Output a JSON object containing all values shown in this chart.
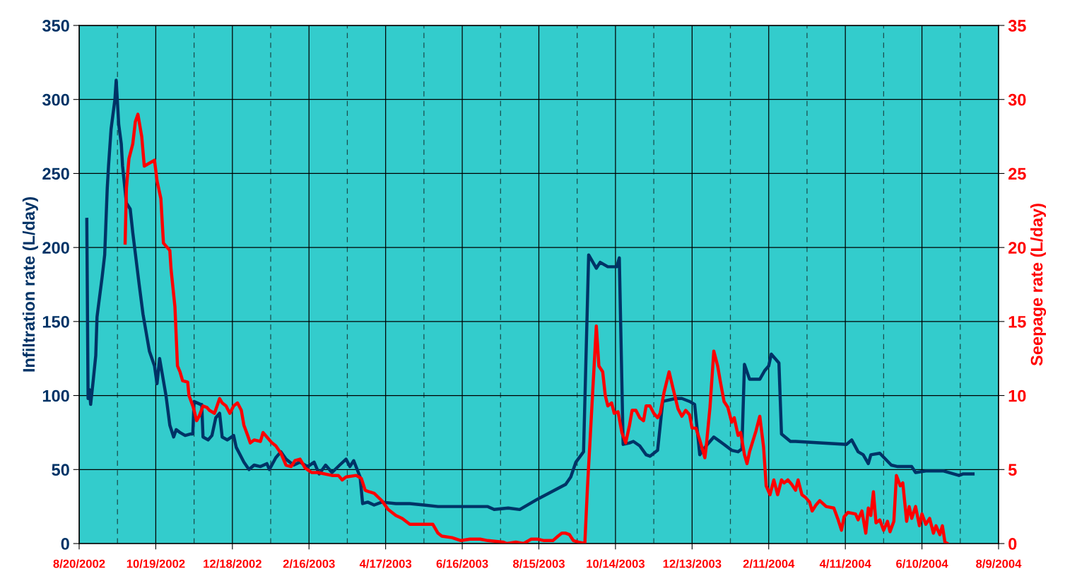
{
  "chart_data": {
    "type": "line",
    "ylabel": "Infiltration rate (L/day)",
    "y2label": "Seepage rate (L/day)",
    "xlim": [
      "2002-08-20",
      "2004-08-09"
    ],
    "xticks": [
      {
        "value": "2002-08-20",
        "label": "8/20/2002"
      },
      {
        "value": "2002-09-19",
        "label": null
      },
      {
        "value": "2002-10-19",
        "label": "10/19/2002"
      },
      {
        "value": "2002-11-18",
        "label": null
      },
      {
        "value": "2002-12-18",
        "label": "12/18/2002"
      },
      {
        "value": "2003-01-17",
        "label": null
      },
      {
        "value": "2003-02-16",
        "label": "2/16/2003"
      },
      {
        "value": "2003-03-18",
        "label": null
      },
      {
        "value": "2003-04-17",
        "label": "4/17/2003"
      },
      {
        "value": "2003-05-17",
        "label": null
      },
      {
        "value": "2003-06-16",
        "label": "6/16/2003"
      },
      {
        "value": "2003-07-16",
        "label": null
      },
      {
        "value": "2003-08-15",
        "label": "8/15/2003"
      },
      {
        "value": "2003-09-14",
        "label": null
      },
      {
        "value": "2003-10-14",
        "label": "10/14/2003"
      },
      {
        "value": "2003-11-13",
        "label": null
      },
      {
        "value": "2003-12-13",
        "label": "12/13/2003"
      },
      {
        "value": "2004-01-12",
        "label": null
      },
      {
        "value": "2004-02-11",
        "label": "2/11/2004"
      },
      {
        "value": "2004-03-12",
        "label": null
      },
      {
        "value": "2004-04-11",
        "label": "4/11/2004"
      },
      {
        "value": "2004-05-11",
        "label": null
      },
      {
        "value": "2004-06-10",
        "label": "6/10/2004"
      },
      {
        "value": "2004-07-10",
        "label": null
      },
      {
        "value": "2004-08-09",
        "label": "8/9/2004"
      }
    ],
    "ylim": [
      0,
      350
    ],
    "yticks": [
      0,
      50,
      100,
      150,
      200,
      250,
      300,
      350
    ],
    "y2lim": [
      0,
      35
    ],
    "y2ticks": [
      0,
      5,
      10,
      15,
      20,
      25,
      30,
      35
    ],
    "grid": true,
    "legend": false,
    "marker": "none",
    "line_style": "solid",
    "series": [
      {
        "color": "#003366",
        "x": [
          "2002-08-26",
          "2002-08-27",
          "2002-08-28",
          "2002-08-29",
          "2002-08-31",
          "2002-09-02",
          "2002-09-03",
          "2002-09-04",
          "2002-09-07",
          "2002-09-09",
          "2002-09-11",
          "2002-09-12",
          "2002-09-14",
          "2002-09-17",
          "2002-09-18",
          "2002-09-20",
          "2002-09-22",
          "2002-09-23",
          "2002-09-26",
          "2002-09-29",
          "2002-10-01",
          "2002-10-03",
          "2002-10-06",
          "2002-10-09",
          "2002-10-12",
          "2002-10-14",
          "2002-10-18",
          "2002-10-20",
          "2002-10-22",
          "2002-10-24",
          "2002-10-27",
          "2002-10-30",
          "2002-11-02",
          "2002-11-04",
          "2002-11-07",
          "2002-11-11",
          "2002-11-15",
          "2002-11-17",
          "2002-11-18",
          "2002-11-23",
          "2002-11-24",
          "2002-11-25",
          "2002-11-29",
          "2002-12-02",
          "2002-12-05",
          "2002-12-08",
          "2002-12-10",
          "2002-12-14",
          "2002-12-19",
          "2002-12-21",
          "2002-12-24",
          "2002-12-27",
          "2002-12-31",
          "2003-01-04",
          "2003-01-09",
          "2003-01-14",
          "2003-01-16",
          "2003-01-21",
          "2003-01-25",
          "2003-01-29",
          "2003-02-04",
          "2003-02-09",
          "2003-02-15",
          "2003-02-20",
          "2003-02-24",
          "2003-03-01",
          "2003-03-06",
          "2003-03-12",
          "2003-03-17",
          "2003-03-20",
          "2003-03-23",
          "2003-03-28",
          "2003-03-30",
          "2003-04-03",
          "2003-04-08",
          "2003-04-14",
          "2003-04-25",
          "2003-05-06",
          "2003-05-17",
          "2003-05-28",
          "2003-06-19",
          "2003-07-06",
          "2003-07-11",
          "2003-07-22",
          "2003-07-31",
          "2003-08-14",
          "2003-09-05",
          "2003-09-09",
          "2003-09-13",
          "2003-09-19",
          "2003-09-23",
          "2003-09-29",
          "2003-10-02",
          "2003-10-08",
          "2003-10-15",
          "2003-10-17",
          "2003-10-20",
          "2003-10-25",
          "2003-10-28",
          "2003-11-02",
          "2003-11-07",
          "2003-11-10",
          "2003-11-16",
          "2003-11-20",
          "2003-11-30",
          "2003-12-05",
          "2003-12-11",
          "2003-12-15",
          "2003-12-19",
          "2003-12-24",
          "2003-12-30",
          "2004-01-07",
          "2004-01-13",
          "2004-01-18",
          "2004-01-21",
          "2004-01-23",
          "2004-01-27",
          "2004-02-04",
          "2004-02-08",
          "2004-02-11",
          "2004-02-13",
          "2004-02-19",
          "2004-02-21",
          "2004-02-28",
          "2004-03-03",
          "2004-04-12",
          "2004-04-16",
          "2004-04-21",
          "2004-04-25",
          "2004-04-29",
          "2004-05-01",
          "2004-05-08",
          "2004-05-17",
          "2004-05-22",
          "2004-06-02",
          "2004-06-05",
          "2004-06-13",
          "2004-06-27",
          "2004-07-09",
          "2004-07-12",
          "2004-07-20"
        ],
        "values": [
          219,
          98,
          104,
          94,
          110,
          127,
          153,
          160,
          180,
          195,
          240,
          255,
          280,
          300,
          313,
          283,
          270,
          255,
          230,
          226,
          210,
          196,
          175,
          155,
          140,
          130,
          120,
          108,
          125,
          115,
          100,
          80,
          72,
          77,
          75,
          73,
          74,
          74,
          96,
          94,
          94,
          72,
          70,
          73,
          85,
          88,
          72,
          70,
          73,
          65,
          60,
          55,
          50,
          53,
          52,
          54,
          50,
          58,
          62,
          57,
          53,
          55,
          52,
          55,
          47,
          53,
          48,
          53,
          57,
          52,
          56,
          45,
          27,
          28,
          26,
          28,
          27,
          27,
          26,
          25,
          25,
          25,
          23,
          24,
          23,
          30,
          40,
          45,
          55,
          62,
          195,
          186,
          190,
          187,
          187,
          193,
          67,
          68,
          69,
          66,
          60,
          59,
          63,
          96,
          98,
          98,
          96,
          94,
          60,
          66,
          72,
          67,
          63,
          62,
          64,
          121,
          111,
          111,
          117,
          120,
          128,
          122,
          74,
          69,
          69,
          67,
          70,
          62,
          60,
          54,
          60,
          61,
          53,
          52,
          52,
          48,
          49,
          49,
          46,
          47,
          47
        ]
      },
      {
        "color": "#ff0000",
        "axis": "y2",
        "x": [
          "2002-09-25",
          "2002-09-26",
          "2002-09-28",
          "2002-10-01",
          "2002-10-03",
          "2002-10-05",
          "2002-10-08",
          "2002-10-10",
          "2002-10-18",
          "2002-10-20",
          "2002-10-23",
          "2002-10-25",
          "2002-10-30",
          "2002-10-31",
          "2002-11-03",
          "2002-11-05",
          "2002-11-07",
          "2002-11-09",
          "2002-11-13",
          "2002-11-14",
          "2002-11-17",
          "2002-11-18",
          "2002-11-20",
          "2002-11-22",
          "2002-11-25",
          "2002-11-28",
          "2002-11-30",
          "2002-12-04",
          "2002-12-08",
          "2002-12-10",
          "2002-12-13",
          "2002-12-16",
          "2002-12-19",
          "2002-12-22",
          "2002-12-25",
          "2002-12-27",
          "2002-12-30",
          "2003-01-01",
          "2003-01-04",
          "2003-01-09",
          "2003-01-11",
          "2003-01-14",
          "2003-01-18",
          "2003-01-21",
          "2003-01-25",
          "2003-01-29",
          "2003-02-02",
          "2003-02-05",
          "2003-02-09",
          "2003-02-13",
          "2003-02-18",
          "2003-02-23",
          "2003-03-06",
          "2003-03-11",
          "2003-03-14",
          "2003-03-17",
          "2003-03-25",
          "2003-03-29",
          "2003-04-01",
          "2003-04-04",
          "2003-04-08",
          "2003-04-14",
          "2003-04-19",
          "2003-04-25",
          "2003-04-30",
          "2003-05-06",
          "2003-05-24",
          "2003-05-28",
          "2003-05-31",
          "2003-06-08",
          "2003-06-15",
          "2003-06-22",
          "2003-06-30",
          "2003-07-06",
          "2003-07-18",
          "2003-07-21",
          "2003-07-28",
          "2003-08-03",
          "2003-08-09",
          "2003-08-14",
          "2003-08-19",
          "2003-08-26",
          "2003-08-30",
          "2003-09-02",
          "2003-09-05",
          "2003-09-08",
          "2003-09-11",
          "2003-09-15",
          "2003-09-20",
          "2003-09-22",
          "2003-09-26",
          "2003-09-29",
          "2003-10-01",
          "2003-10-04",
          "2003-10-06",
          "2003-10-08",
          "2003-10-11",
          "2003-10-13",
          "2003-10-16",
          "2003-10-19",
          "2003-10-22",
          "2003-10-25",
          "2003-10-27",
          "2003-10-30",
          "2003-11-02",
          "2003-11-05",
          "2003-11-07",
          "2003-11-10",
          "2003-11-13",
          "2003-11-16",
          "2003-11-18",
          "2003-11-21",
          "2003-11-25",
          "2003-11-28",
          "2003-12-02",
          "2003-12-05",
          "2003-12-08",
          "2003-12-11",
          "2003-12-13",
          "2003-12-16",
          "2003-12-19",
          "2003-12-23",
          "2003-12-24",
          "2003-12-27",
          "2003-12-30",
          "2004-01-02",
          "2004-01-04",
          "2004-01-07",
          "2004-01-10",
          "2004-01-13",
          "2004-01-15",
          "2004-01-18",
          "2004-01-20",
          "2004-01-23",
          "2004-01-25",
          "2004-01-27",
          "2004-02-01",
          "2004-02-04",
          "2004-02-07",
          "2004-02-09",
          "2004-02-12",
          "2004-02-15",
          "2004-02-18",
          "2004-02-21",
          "2004-02-23",
          "2004-02-26",
          "2004-02-29",
          "2004-03-03",
          "2004-03-05",
          "2004-03-08",
          "2004-03-11",
          "2004-03-14",
          "2004-03-16",
          "2004-03-19",
          "2004-03-22",
          "2004-03-27",
          "2004-04-02",
          "2004-04-05",
          "2004-04-08",
          "2004-04-10",
          "2004-04-13",
          "2004-04-19",
          "2004-04-21",
          "2004-04-24",
          "2004-04-27",
          "2004-04-29",
          "2004-05-01",
          "2004-05-03",
          "2004-05-05",
          "2004-05-08",
          "2004-05-11",
          "2004-05-14",
          "2004-05-16",
          "2004-05-19",
          "2004-05-21",
          "2004-05-24",
          "2004-05-26",
          "2004-05-29",
          "2004-05-31",
          "2004-06-02",
          "2004-06-05",
          "2004-06-08",
          "2004-06-10",
          "2004-06-13",
          "2004-06-16",
          "2004-06-19",
          "2004-06-21",
          "2004-06-24",
          "2004-06-26",
          "2004-06-28",
          "2004-06-30"
        ],
        "values": [
          20.3,
          24,
          26,
          27,
          28.5,
          29,
          27.5,
          25.5,
          25.9,
          24.5,
          23.3,
          20.3,
          19.8,
          18.5,
          16,
          12,
          11.6,
          11,
          10.9,
          10,
          9.3,
          9,
          8.3,
          8.6,
          9.3,
          9.2,
          9.0,
          8.8,
          9.8,
          9.5,
          9.3,
          8.8,
          9.3,
          9.5,
          9.0,
          8.0,
          7.3,
          6.8,
          7.0,
          6.9,
          7.5,
          7.2,
          6.8,
          6.6,
          6.1,
          5.3,
          5.2,
          5.6,
          5.7,
          5.1,
          4.8,
          4.8,
          4.6,
          4.6,
          4.3,
          4.5,
          4.6,
          4.4,
          3.6,
          3.5,
          3.4,
          2.9,
          2.3,
          1.9,
          1.7,
          1.3,
          1.3,
          0.7,
          0.5,
          0.4,
          0.2,
          0.3,
          0.3,
          0.2,
          0.1,
          0,
          0.1,
          0,
          0.3,
          0.3,
          0.2,
          0.2,
          0.5,
          0.7,
          0.7,
          0.6,
          0.2,
          0.1,
          0,
          3.7,
          10,
          14.7,
          12,
          11.6,
          10,
          9.3,
          9.5,
          8.8,
          8.9,
          7.5,
          6.8,
          8.0,
          9.0,
          9.0,
          8.5,
          8.3,
          9.3,
          9.3,
          8.8,
          8.5,
          8.8,
          10.2,
          11.6,
          10.5,
          9.1,
          8.6,
          9.0,
          8.7,
          7.8,
          7.8,
          7.0,
          5.8,
          6.5,
          9.2,
          13.0,
          12,
          11,
          9.6,
          9.2,
          8.2,
          8.5,
          7.3,
          7.5,
          6.0,
          5.4,
          6.2,
          7.6,
          8.6,
          6.5,
          3.9,
          3.3,
          4.3,
          3.3,
          4.3,
          4.1,
          4.3,
          4.0,
          3.6,
          4.3,
          3.3,
          3.1,
          2.8,
          2.2,
          2.6,
          2.9,
          2.5,
          2.4,
          1.7,
          0.9,
          1.8,
          2.1,
          2.0,
          1.6,
          2.2,
          0.7,
          2.4,
          1.9,
          3.5,
          1.4,
          1.6,
          0.9,
          1.5,
          0.8,
          1.5,
          4.6,
          3.9,
          4.1,
          1.5,
          2.5,
          1.7,
          2.5,
          1.2,
          2.0,
          1.3,
          1.7,
          0.7,
          1.2,
          0.6,
          1.2,
          0.1,
          0
        ]
      }
    ]
  }
}
